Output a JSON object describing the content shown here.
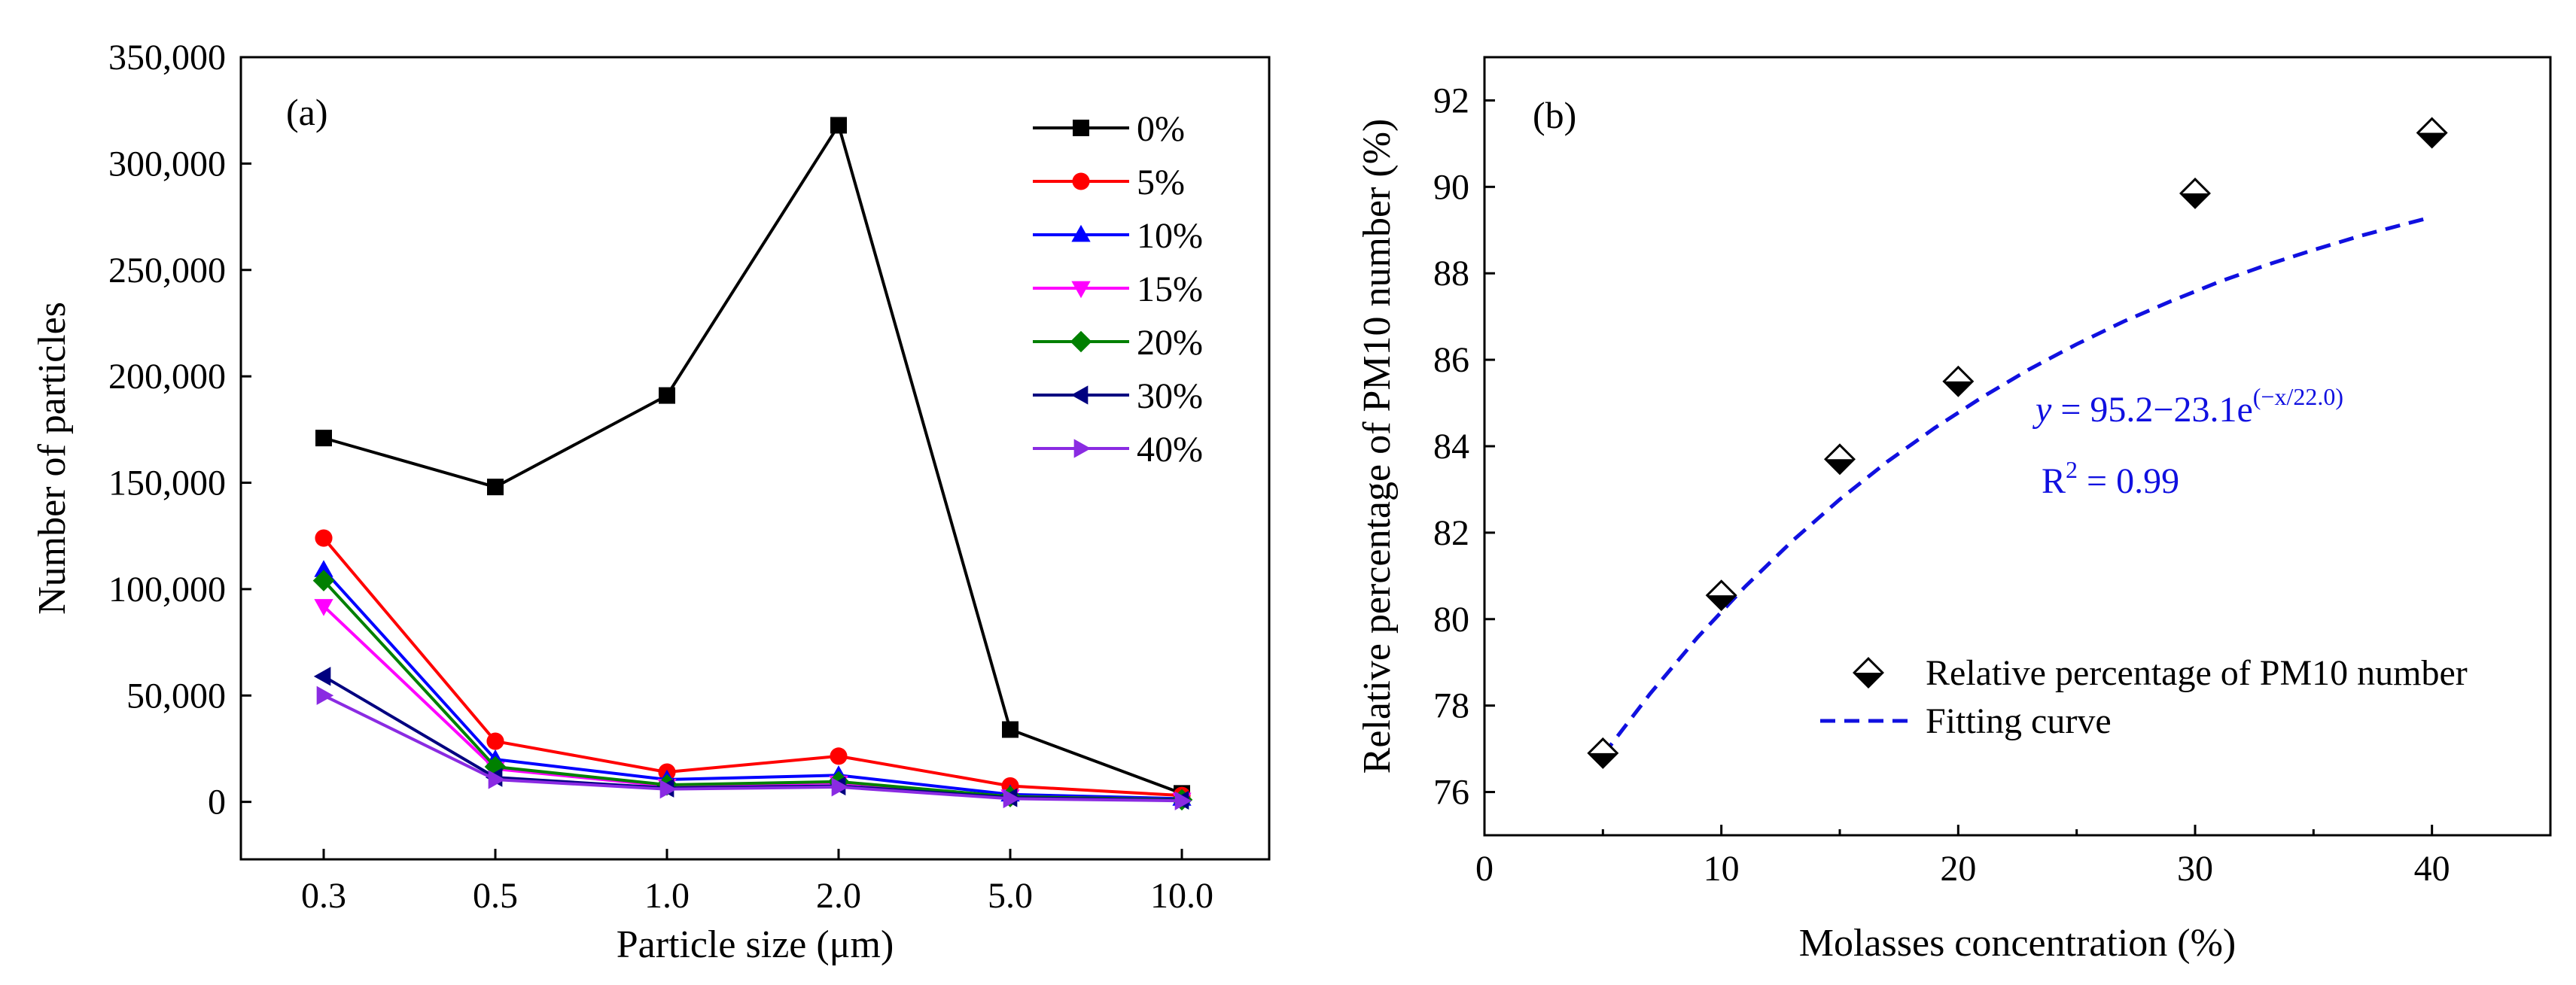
{
  "chart_data": [
    {
      "type": "line",
      "panel_label": "(a)",
      "title": "",
      "xlabel": "Particle size (μm)",
      "ylabel": "Number of particles",
      "categories": [
        "0.3",
        "0.5",
        "1.0",
        "2.0",
        "5.0",
        "10.0"
      ],
      "ylim": [
        -27000,
        350000
      ],
      "yticks": [
        0,
        50000,
        100000,
        150000,
        200000,
        250000,
        300000,
        350000
      ],
      "ytick_labels": [
        "0",
        "50,000",
        "100,000",
        "150,000",
        "200,000",
        "250,000",
        "300,000",
        "350,000"
      ],
      "grid": false,
      "legend_position": "top-right",
      "series": [
        {
          "name": "0%",
          "color": "#000000",
          "marker": "square",
          "values": [
            171000,
            148000,
            191000,
            318000,
            34000,
            4000
          ]
        },
        {
          "name": "5%",
          "color": "#ff0000",
          "marker": "circle",
          "values": [
            124000,
            28500,
            14000,
            21500,
            7500,
            3000
          ]
        },
        {
          "name": "10%",
          "color": "#0000ff",
          "marker": "triangle-up",
          "values": [
            109000,
            20000,
            10500,
            12500,
            3500,
            1500
          ]
        },
        {
          "name": "15%",
          "color": "#ff00ff",
          "marker": "triangle-down",
          "values": [
            92000,
            15500,
            7500,
            9000,
            2500,
            1000
          ]
        },
        {
          "name": "20%",
          "color": "#008000",
          "marker": "diamond",
          "values": [
            104000,
            16500,
            8000,
            9500,
            2500,
            1000
          ]
        },
        {
          "name": "30%",
          "color": "#000080",
          "marker": "triangle-left",
          "values": [
            59000,
            11500,
            6500,
            7500,
            2000,
            800
          ]
        },
        {
          "name": "40%",
          "color": "#8a2be2",
          "marker": "triangle-right",
          "values": [
            50000,
            10500,
            6000,
            7000,
            1500,
            500
          ]
        }
      ]
    },
    {
      "type": "scatter",
      "panel_label": "(b)",
      "title": "",
      "xlabel": "Molasses concentration (%)",
      "ylabel": "Relative percentage of PM10 number (%)",
      "xlim": [
        0,
        45
      ],
      "ylim": [
        75,
        93
      ],
      "xticks": [
        0,
        10,
        20,
        30,
        40
      ],
      "yticks": [
        76,
        78,
        80,
        82,
        84,
        86,
        88,
        90,
        92
      ],
      "grid": false,
      "legend_position": "bottom-right",
      "series": [
        {
          "name": "Relative percentage of PM10 number",
          "kind": "points",
          "marker": "half-filled-diamond",
          "color": "#000000",
          "x": [
            5,
            10,
            15,
            20,
            30,
            40
          ],
          "y": [
            76.9,
            80.55,
            83.7,
            85.5,
            89.85,
            91.25
          ]
        },
        {
          "name": "Fitting curve",
          "kind": "dashed-line",
          "color": "#1010e0",
          "x": [
            5,
            7,
            9,
            11,
            13,
            15,
            17,
            19,
            21,
            23,
            25,
            27,
            29,
            31,
            33,
            35,
            37,
            39,
            40
          ],
          "y": [
            76.85,
            78.28,
            79.58,
            80.75,
            81.81,
            82.77,
            83.64,
            84.42,
            85.13,
            85.78,
            86.36,
            86.89,
            87.36,
            87.8,
            88.19,
            88.54,
            88.87,
            89.16,
            89.3
          ]
        }
      ],
      "annotations": {
        "equation_prefix": "y",
        "equation_body": " = 95.2−23.1e",
        "equation_exponent": "(−x/22.0)",
        "r2_prefix": "R",
        "r2_sup": "2",
        "r2_suffix": " = 0.99"
      }
    }
  ]
}
